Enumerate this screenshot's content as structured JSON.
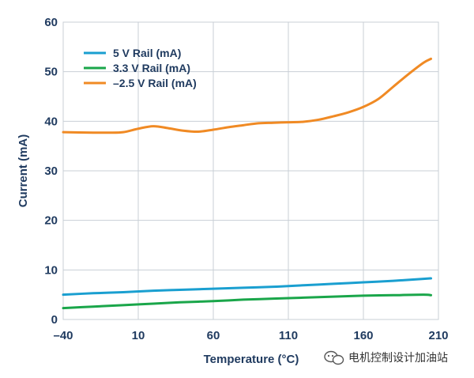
{
  "chart_data": {
    "type": "line",
    "title": "",
    "xlabel": "Temperature (°C)",
    "ylabel": "Current (mA)",
    "xlim": [
      -40,
      210
    ],
    "ylim": [
      0,
      60
    ],
    "x_ticks": [
      -40,
      10,
      60,
      110,
      160,
      210
    ],
    "y_ticks": [
      0,
      10,
      20,
      30,
      40,
      50,
      60
    ],
    "x_tick_labels": [
      "–40",
      "10",
      "60",
      "110",
      "160",
      "210"
    ],
    "y_tick_labels": [
      "0",
      "10",
      "20",
      "30",
      "40",
      "50",
      "60"
    ],
    "grid": true,
    "legend_position": "top-left",
    "series": [
      {
        "name": "5 V Rail (mA)",
        "color": "#1a9fd0",
        "x": [
          -40,
          -20,
          0,
          20,
          40,
          60,
          80,
          100,
          120,
          140,
          160,
          180,
          200,
          205
        ],
        "y": [
          5.0,
          5.3,
          5.5,
          5.8,
          6.0,
          6.2,
          6.4,
          6.6,
          6.9,
          7.2,
          7.5,
          7.8,
          8.2,
          8.3
        ]
      },
      {
        "name": "3.3 V Rail (mA)",
        "color": "#1aa64a",
        "x": [
          -40,
          -20,
          0,
          20,
          40,
          60,
          80,
          100,
          120,
          140,
          160,
          180,
          200,
          205
        ],
        "y": [
          2.3,
          2.6,
          2.9,
          3.2,
          3.5,
          3.7,
          4.0,
          4.2,
          4.4,
          4.6,
          4.8,
          4.9,
          5.0,
          4.9
        ]
      },
      {
        "name": "–2.5 V Rail (mA)",
        "color": "#f08a24",
        "x": [
          -40,
          -20,
          -10,
          0,
          10,
          20,
          30,
          40,
          50,
          60,
          70,
          80,
          90,
          100,
          110,
          120,
          130,
          140,
          150,
          160,
          170,
          180,
          190,
          200,
          205
        ],
        "y": [
          37.8,
          37.7,
          37.7,
          37.8,
          38.5,
          39.0,
          38.6,
          38.1,
          37.9,
          38.3,
          38.8,
          39.2,
          39.6,
          39.7,
          39.8,
          39.9,
          40.3,
          41.0,
          41.8,
          42.9,
          44.5,
          47.0,
          49.5,
          51.8,
          52.6
        ]
      }
    ]
  },
  "watermark": {
    "text": "电机控制设计加油站",
    "icon": "wechat-icon"
  }
}
